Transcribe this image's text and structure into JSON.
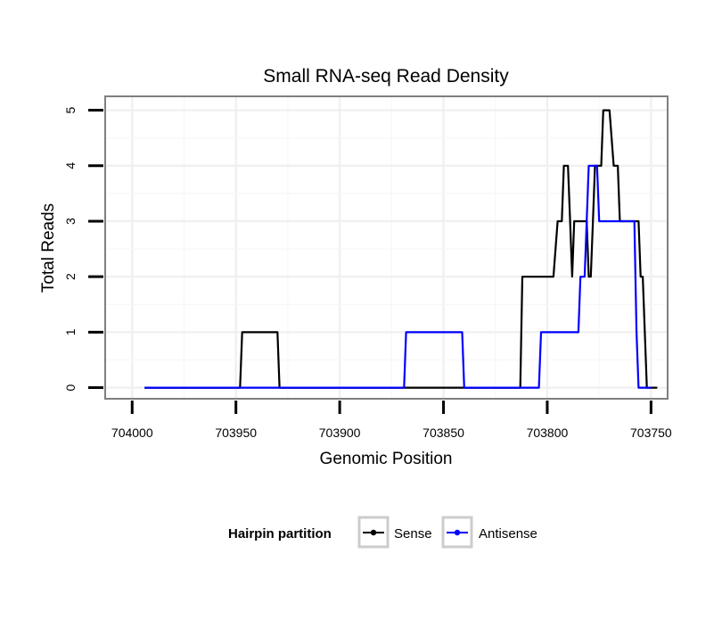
{
  "chart_data": {
    "type": "line",
    "title": "Small RNA-seq Read Density",
    "xlabel": "Genomic Position",
    "ylabel": "Total Reads",
    "xlim": [
      704013,
      703742
    ],
    "ylim": [
      -0.2,
      5.25
    ],
    "x_reversed": true,
    "xticks": [
      704000,
      703950,
      703900,
      703850,
      703800,
      703750
    ],
    "xtick_labels": [
      "704000",
      "703950",
      "703900",
      "703850",
      "703800",
      "703750"
    ],
    "yticks": [
      0,
      1,
      2,
      3,
      4,
      5
    ],
    "ytick_labels": [
      "0",
      "1",
      "2",
      "3",
      "4",
      "5"
    ],
    "grid": true,
    "legend": {
      "title": "Hairpin partition",
      "position": "bottom",
      "entries": [
        "Sense",
        "Antisense"
      ]
    },
    "series": [
      {
        "name": "Sense",
        "color": "#000000",
        "points": [
          [
            703994,
            0
          ],
          [
            703948,
            0
          ],
          [
            703947,
            1
          ],
          [
            703930,
            1
          ],
          [
            703929,
            0
          ],
          [
            703813,
            0
          ],
          [
            703812,
            2
          ],
          [
            703797,
            2
          ],
          [
            703795,
            3
          ],
          [
            703793,
            3
          ],
          [
            703792,
            4
          ],
          [
            703790,
            4
          ],
          [
            703789,
            3
          ],
          [
            703788,
            2
          ],
          [
            703787,
            3
          ],
          [
            703781,
            3
          ],
          [
            703780,
            2
          ],
          [
            703779,
            2
          ],
          [
            703778,
            3
          ],
          [
            703777,
            4
          ],
          [
            703774,
            4
          ],
          [
            703773,
            5
          ],
          [
            703770,
            5
          ],
          [
            703768,
            4
          ],
          [
            703766,
            4
          ],
          [
            703765,
            3
          ],
          [
            703756,
            3
          ],
          [
            703755,
            2
          ],
          [
            703754,
            2
          ],
          [
            703752,
            0
          ],
          [
            703747,
            0
          ]
        ]
      },
      {
        "name": "Antisense",
        "color": "#0000ff",
        "points": [
          [
            703994,
            0
          ],
          [
            703869,
            0
          ],
          [
            703868,
            1
          ],
          [
            703841,
            1
          ],
          [
            703840,
            0
          ],
          [
            703804,
            0
          ],
          [
            703803,
            1
          ],
          [
            703785,
            1
          ],
          [
            703784,
            2
          ],
          [
            703782,
            2
          ],
          [
            703781,
            3
          ],
          [
            703780,
            4
          ],
          [
            703776,
            4
          ],
          [
            703775,
            3
          ],
          [
            703758,
            3
          ],
          [
            703757,
            1
          ],
          [
            703756,
            0
          ],
          [
            703750,
            0
          ]
        ]
      }
    ]
  }
}
